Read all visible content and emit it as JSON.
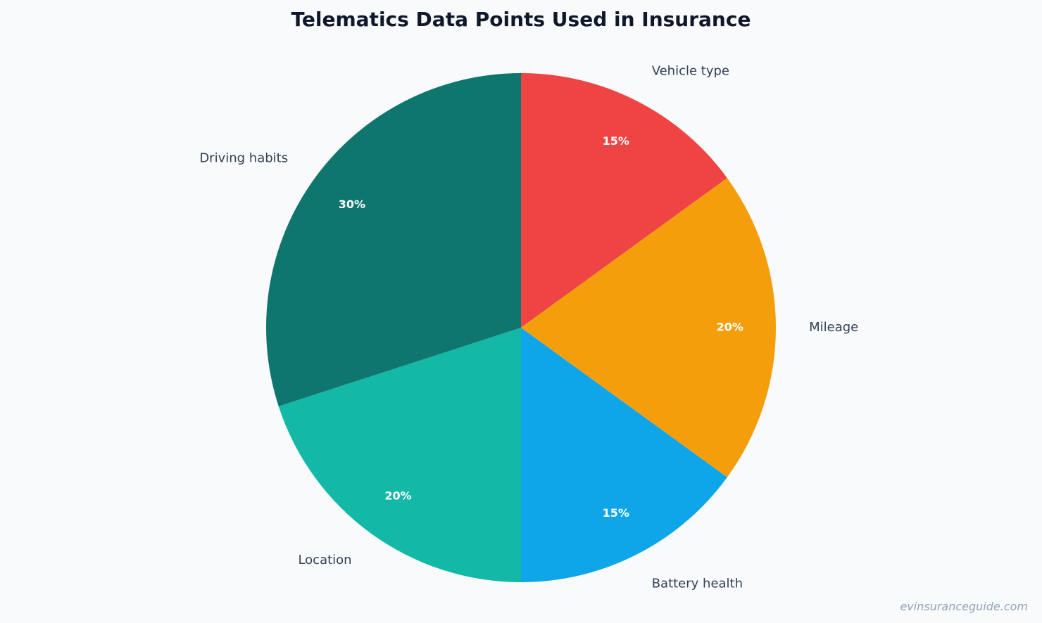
{
  "chart_data": {
    "type": "pie",
    "title": "Telematics Data Points Used in Insurance",
    "start_angle": "12 o'clock",
    "direction": "clockwise",
    "slices": [
      {
        "label": "Vehicle type",
        "value": 15,
        "display": "15%",
        "color": "#ef4444"
      },
      {
        "label": "Mileage",
        "value": 20,
        "display": "20%",
        "color": "#f59e0b"
      },
      {
        "label": "Battery health",
        "value": 15,
        "display": "15%",
        "color": "#0ea5e9"
      },
      {
        "label": "Location",
        "value": 20,
        "display": "20%",
        "color": "#14b8a6"
      },
      {
        "label": "Driving habits",
        "value": 30,
        "display": "30%",
        "color": "#0f766e"
      }
    ]
  },
  "watermark": "evinsuranceguide.com"
}
